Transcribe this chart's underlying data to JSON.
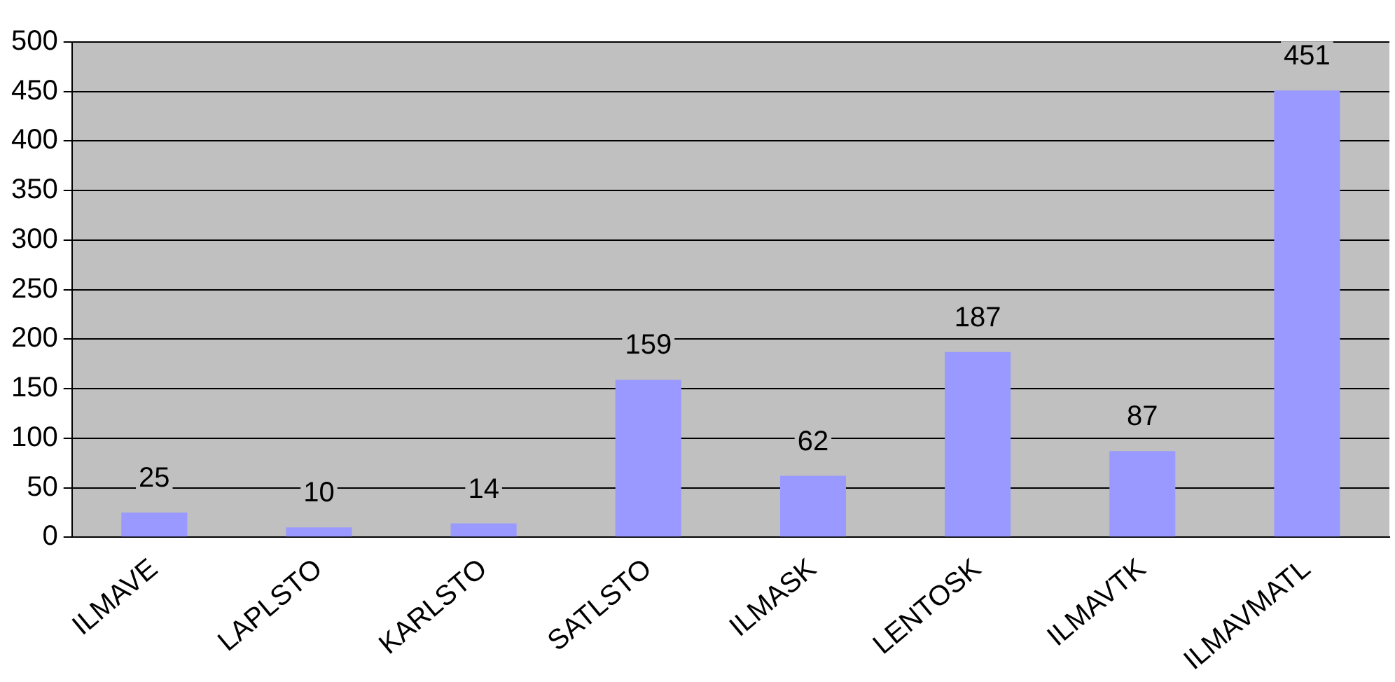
{
  "chart_data": {
    "type": "bar",
    "categories": [
      "ILMAVE",
      "LAPLSTO",
      "KARLSTO",
      "SATLSTO",
      "ILMASK",
      "LENTOSK",
      "ILMAVTK",
      "ILMAVMATL"
    ],
    "values": [
      25,
      10,
      14,
      159,
      62,
      187,
      87,
      451
    ],
    "color": "#9999ff",
    "ylim": [
      0,
      500
    ],
    "yticks": [
      0,
      50,
      100,
      150,
      200,
      250,
      300,
      350,
      400,
      450,
      500
    ],
    "grid": "y",
    "data_labels": true,
    "legend": false
  }
}
